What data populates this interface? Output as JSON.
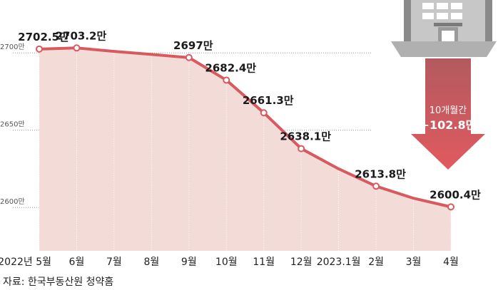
{
  "chart_data": {
    "type": "area",
    "categories": [
      "2022년 5월",
      "6월",
      "7월",
      "8월",
      "9월",
      "10월",
      "11월",
      "12월",
      "2023.1월",
      "2월",
      "3월",
      "4월"
    ],
    "values": [
      2702.5,
      2703.2,
      2701,
      2699,
      2697,
      2682.4,
      2661.3,
      2638.1,
      2625,
      2613.8,
      2606,
      2600.4
    ],
    "data_labels": [
      "2702.5만",
      "2703.2만",
      "",
      "",
      "2697만",
      "2682.4만",
      "2661.3만",
      "2638.1만",
      "",
      "2613.8만",
      "",
      "2600.4만"
    ],
    "markers": [
      true,
      true,
      false,
      false,
      true,
      true,
      true,
      true,
      false,
      true,
      false,
      true
    ],
    "yticks": [
      2600,
      2650,
      2700
    ],
    "ytick_labels": [
      "2600만",
      "2650만",
      "2700만"
    ],
    "ylim": [
      2572,
      2725
    ],
    "grid": true,
    "colors": {
      "line": "#d85a5f",
      "area": "#f3dbd8",
      "marker_fill": "#ffffff"
    }
  },
  "callout": {
    "period": "10개월간",
    "change": "−102.8만",
    "colors": {
      "arrow_top": "#b35a5f",
      "arrow_bottom": "#e05a5f"
    }
  },
  "illustration": {
    "name": "apartment-building-icon"
  },
  "source": "자료: 한국부동산원 청약홈"
}
